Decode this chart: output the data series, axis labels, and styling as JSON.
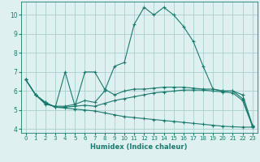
{
  "bg_color": "#dff0f0",
  "grid_color": "#aacfcf",
  "line_color": "#1a7a6e",
  "xlabel": "Humidex (Indice chaleur)",
  "xlim": [
    -0.5,
    23.5
  ],
  "ylim": [
    3.8,
    10.7
  ],
  "yticks": [
    4,
    5,
    6,
    7,
    8,
    9,
    10
  ],
  "xticks": [
    0,
    1,
    2,
    3,
    4,
    5,
    6,
    7,
    8,
    9,
    10,
    11,
    12,
    13,
    14,
    15,
    16,
    17,
    18,
    19,
    20,
    21,
    22,
    23
  ],
  "line1_x": [
    0,
    1,
    2,
    3,
    4,
    5,
    6,
    7,
    8,
    9,
    10,
    11,
    12,
    13,
    14,
    15,
    16,
    17,
    18,
    19,
    20,
    21,
    22,
    23
  ],
  "line1_y": [
    6.6,
    5.8,
    5.3,
    5.2,
    5.2,
    5.3,
    5.5,
    5.4,
    6.0,
    7.3,
    7.5,
    9.5,
    10.4,
    10.0,
    10.4,
    10.0,
    9.4,
    8.6,
    7.3,
    6.1,
    6.0,
    6.0,
    5.8,
    4.2
  ],
  "line2_x": [
    0,
    1,
    2,
    3,
    4,
    5,
    6,
    7,
    8,
    9,
    10,
    11,
    12,
    13,
    14,
    15,
    16,
    17,
    18,
    19,
    20,
    21,
    22,
    23
  ],
  "line2_y": [
    6.6,
    5.8,
    5.4,
    5.15,
    7.0,
    5.2,
    7.0,
    7.0,
    6.1,
    5.8,
    6.0,
    6.1,
    6.1,
    6.15,
    6.2,
    6.2,
    6.2,
    6.15,
    6.1,
    6.1,
    6.0,
    6.0,
    5.6,
    4.15
  ],
  "line3_x": [
    0,
    1,
    2,
    3,
    4,
    5,
    6,
    7,
    8,
    9,
    10,
    11,
    12,
    13,
    14,
    15,
    16,
    17,
    18,
    19,
    20,
    21,
    22,
    23
  ],
  "line3_y": [
    6.6,
    5.8,
    5.4,
    5.15,
    5.15,
    5.2,
    5.25,
    5.2,
    5.35,
    5.5,
    5.6,
    5.7,
    5.8,
    5.9,
    5.95,
    6.0,
    6.05,
    6.05,
    6.05,
    6.0,
    5.95,
    5.9,
    5.5,
    4.15
  ],
  "line4_x": [
    0,
    1,
    2,
    3,
    4,
    5,
    6,
    7,
    8,
    9,
    10,
    11,
    12,
    13,
    14,
    15,
    16,
    17,
    18,
    19,
    20,
    21,
    22,
    23
  ],
  "line4_y": [
    6.6,
    5.8,
    5.35,
    5.15,
    5.1,
    5.05,
    5.0,
    4.95,
    4.85,
    4.75,
    4.65,
    4.6,
    4.55,
    4.5,
    4.45,
    4.4,
    4.35,
    4.3,
    4.25,
    4.2,
    4.15,
    4.12,
    4.1,
    4.1
  ]
}
